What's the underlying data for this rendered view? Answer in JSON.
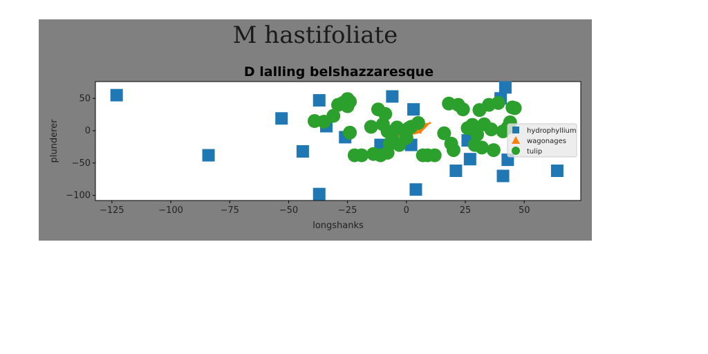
{
  "figure": {
    "suptitle": "M hastifoliate",
    "background_color": "#808080",
    "page_color": "#ffffff"
  },
  "chart_data": {
    "type": "scatter",
    "title": "D lalling belshazzaresque",
    "xlabel": "longshanks",
    "ylabel": "plunderer",
    "xlim": [
      -132,
      74
    ],
    "ylim": [
      -108,
      76
    ],
    "xticks": [
      -125,
      -100,
      -75,
      -50,
      -25,
      0,
      25,
      50
    ],
    "xtick_labels": [
      "−125",
      "−100",
      "−75",
      "−50",
      "−25",
      "0",
      "25",
      "50"
    ],
    "yticks": [
      50,
      0,
      -50,
      -100
    ],
    "ytick_labels": [
      "50",
      "0",
      "−50",
      "−100"
    ],
    "grid": false,
    "legend_position": "center-right",
    "series": [
      {
        "name": "hydrophyllium",
        "marker": "square",
        "color": "#1f77b4",
        "x": [
          -123,
          -84,
          -53,
          -44,
          -37,
          -37,
          -34,
          -26,
          -11,
          -6,
          2,
          3,
          4,
          21,
          26,
          27,
          40,
          41,
          42,
          43,
          64
        ],
        "y": [
          55,
          -38,
          19,
          -32,
          47,
          -98,
          7,
          -10,
          -22,
          53,
          -22,
          33,
          -91,
          -62,
          -15,
          -44,
          50,
          -70,
          67,
          -45,
          -62
        ]
      },
      {
        "name": "wagonages",
        "marker": "triangle",
        "color": "#ff7f0e",
        "x": [
          -7,
          10,
          6,
          -7
        ],
        "y": [
          3,
          12,
          -3,
          -14
        ]
      },
      {
        "name": "tulip",
        "marker": "circle",
        "color": "#2ca02c",
        "x": [
          -39,
          -35,
          -31,
          -29,
          -27,
          -25,
          -24,
          -25,
          -24,
          -22,
          -19,
          -15,
          -14,
          -12,
          -11,
          -10,
          -9,
          -8,
          -8,
          -7,
          -6,
          -4,
          -3,
          -1,
          0,
          1,
          2,
          5,
          7,
          9,
          12,
          16,
          18,
          19,
          20,
          22,
          24,
          26,
          28,
          29,
          30,
          31,
          32,
          33,
          35,
          36,
          37,
          39,
          41,
          43,
          44,
          45,
          46
        ],
        "y": [
          15,
          14,
          23,
          40,
          43,
          38,
          45,
          49,
          -3,
          -38,
          -38,
          6,
          -36,
          33,
          -38,
          10,
          26,
          -1,
          -34,
          -20,
          -12,
          5,
          -22,
          0,
          -11,
          4,
          6,
          12,
          -38,
          -38,
          -38,
          -4,
          42,
          -20,
          -30,
          40,
          33,
          4,
          9,
          -22,
          -6,
          32,
          -26,
          10,
          40,
          2,
          -30,
          43,
          -1,
          5,
          13,
          36,
          35
        ]
      }
    ]
  }
}
